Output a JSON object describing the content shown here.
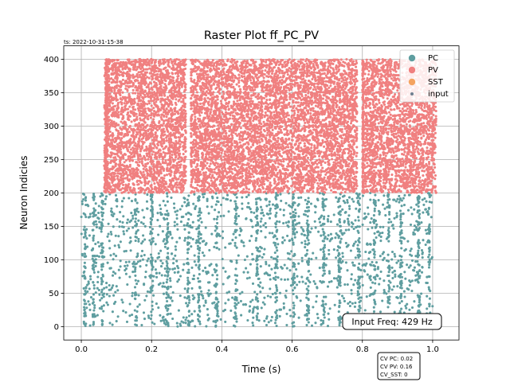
{
  "chart_data": {
    "type": "scatter",
    "title": "Raster Plot ff_PC_PV",
    "timestamp": "ts: 2022-10-31-15-38",
    "xlabel": "Time (s)",
    "ylabel": "Neuron Indicies",
    "xlim": [
      -0.05,
      1.075
    ],
    "ylim": [
      -20,
      420
    ],
    "xticks": [
      0.0,
      0.2,
      0.4,
      0.6,
      0.8,
      1.0
    ],
    "xtick_labels": [
      "0.0",
      "0.2",
      "0.4",
      "0.6",
      "0.8",
      "1.0"
    ],
    "yticks": [
      0,
      50,
      100,
      150,
      200,
      250,
      300,
      350,
      400
    ],
    "ytick_labels": [
      "0",
      "50",
      "100",
      "150",
      "200",
      "250",
      "300",
      "350",
      "400"
    ],
    "grid": true,
    "legend_position": "top-right",
    "series": [
      {
        "name": "PC",
        "color": "#5f9ea0",
        "neuron_range": [
          0,
          200
        ],
        "time_range": [
          0.0,
          1.0
        ],
        "approx_spike_count": 2600,
        "dense_columns_s": [
          0.01,
          0.035,
          0.06,
          0.155,
          0.2,
          0.245,
          0.305,
          0.335,
          0.385,
          0.44,
          0.5,
          0.555,
          0.605,
          0.645,
          0.69,
          0.735,
          0.79,
          0.835,
          0.875,
          0.91,
          0.96,
          0.99
        ]
      },
      {
        "name": "PV",
        "color": "#f08080",
        "neuron_range": [
          200,
          400
        ],
        "time_range": [
          0.065,
          1.01
        ],
        "gaps_s": [
          [
            0.298,
            0.312
          ],
          [
            0.785,
            0.8
          ]
        ],
        "approx_spike_count": 11000,
        "dense_columns_s": [
          0.072,
          0.31,
          0.8
        ]
      },
      {
        "name": "SST",
        "color": "#f4a460",
        "neuron_range": [],
        "approx_spike_count": 0
      },
      {
        "name": "input",
        "color": "#708090",
        "neuron_range": [],
        "approx_spike_count": 0
      }
    ],
    "annotations": {
      "input_freq": "Input Freq: 429 Hz",
      "cv_lines": [
        "CV PC: 0.02",
        "CV PV: 0.16",
        "CV_SST: 0"
      ]
    }
  }
}
